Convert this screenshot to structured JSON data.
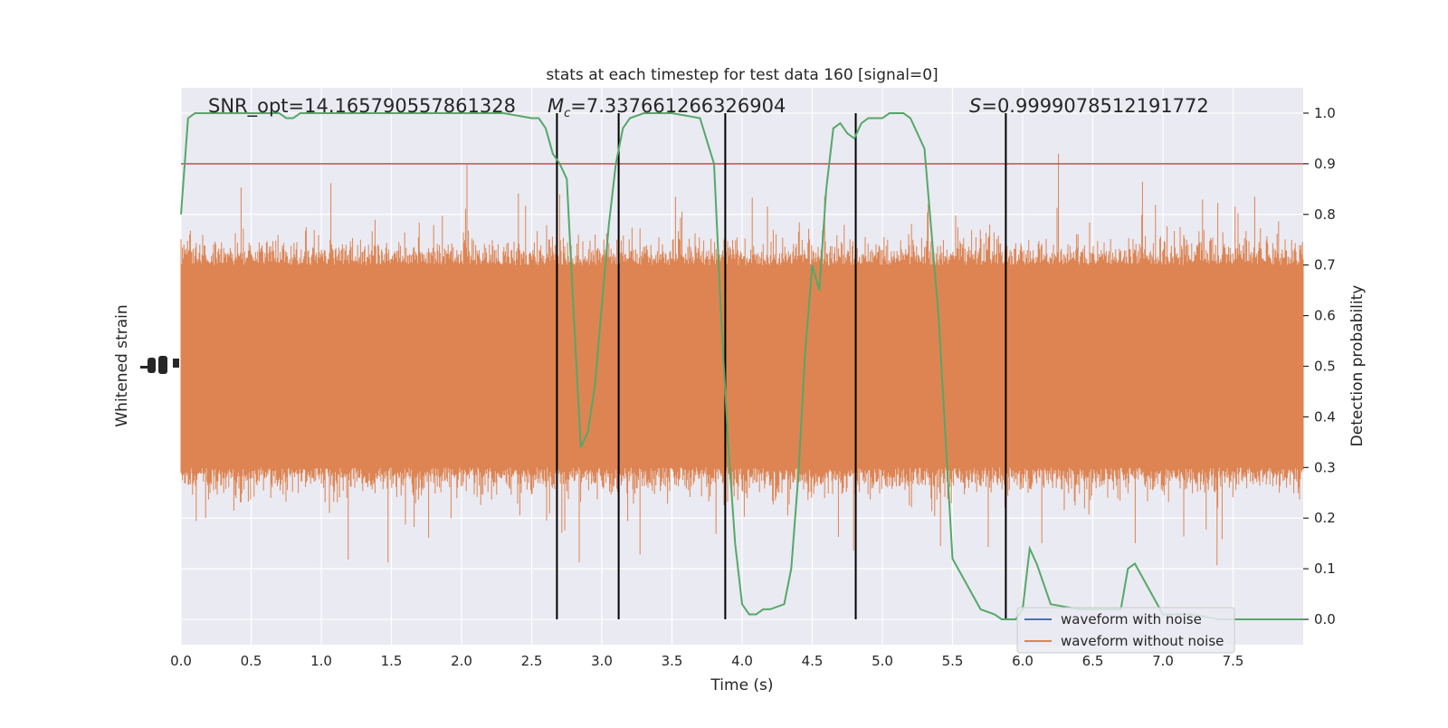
{
  "chart_data": {
    "type": "line",
    "title": "stats at each timestep for test data 160 [signal=0]",
    "xlabel": "Time (s)",
    "ylabel_left": "Whitened strain",
    "ylabel_right": "Detection probability",
    "xlim": [
      0,
      8
    ],
    "ylim_right": [
      -0.05,
      1.05
    ],
    "x_ticks": [
      "0.0",
      "0.5",
      "1.0",
      "1.5",
      "2.0",
      "2.5",
      "3.0",
      "3.5",
      "4.0",
      "4.5",
      "5.0",
      "5.5",
      "6.0",
      "6.5",
      "7.0",
      "7.5"
    ],
    "y_right_ticks": [
      "0.0",
      "0.1",
      "0.2",
      "0.3",
      "0.4",
      "0.5",
      "0.6",
      "0.7",
      "0.8",
      "0.9",
      "1.0"
    ],
    "grid": true,
    "legend_position": "lower-right",
    "annotations": {
      "snr": "SNR_opt=14.165790557861328",
      "chirp_mass_symbol": "M",
      "chirp_mass_subscript": "c",
      "chirp_mass_value": "=7.337661266326904",
      "score_symbol": "S",
      "score_value": "=0.9999078512191772"
    },
    "threshold": 0.9,
    "vertical_lines_x": [
      2.68,
      3.12,
      3.88,
      4.81,
      5.88
    ],
    "series": [
      {
        "name": "waveform with noise",
        "color": "#4c72b0",
        "values": []
      },
      {
        "name": "waveform without noise",
        "color": "#dd8452",
        "noise_band_center": 0.5,
        "noise_band_half_width": 0.2
      },
      {
        "color": "#55a868",
        "x": [
          0.0,
          0.05,
          0.1,
          0.2,
          0.3,
          0.5,
          0.7,
          0.75,
          0.8,
          0.85,
          0.9,
          1.0,
          1.5,
          2.0,
          2.3,
          2.5,
          2.55,
          2.6,
          2.65,
          2.7,
          2.75,
          2.8,
          2.85,
          2.9,
          2.95,
          3.0,
          3.05,
          3.1,
          3.15,
          3.2,
          3.3,
          3.5,
          3.7,
          3.8,
          3.85,
          3.9,
          3.95,
          4.0,
          4.05,
          4.1,
          4.15,
          4.2,
          4.3,
          4.35,
          4.4,
          4.45,
          4.5,
          4.55,
          4.6,
          4.65,
          4.7,
          4.75,
          4.8,
          4.85,
          4.9,
          5.0,
          5.05,
          5.1,
          5.15,
          5.2,
          5.3,
          5.4,
          5.5,
          5.7,
          5.8,
          5.85,
          5.9,
          5.95,
          6.0,
          6.05,
          6.1,
          6.2,
          6.4,
          6.5,
          6.55,
          6.6,
          6.65,
          6.7,
          6.75,
          6.8,
          7.0,
          7.2,
          7.4,
          7.45,
          7.5,
          7.55,
          7.6,
          7.65,
          7.7,
          7.8,
          8.0
        ],
        "values": [
          0.8,
          0.99,
          1.0,
          1.0,
          1.0,
          1.0,
          1.0,
          0.99,
          0.99,
          1.0,
          1.0,
          1.0,
          1.0,
          1.0,
          1.0,
          0.99,
          0.99,
          0.97,
          0.92,
          0.9,
          0.87,
          0.6,
          0.34,
          0.37,
          0.46,
          0.62,
          0.78,
          0.9,
          0.97,
          0.99,
          1.0,
          1.0,
          0.99,
          0.9,
          0.6,
          0.35,
          0.15,
          0.03,
          0.01,
          0.01,
          0.02,
          0.02,
          0.03,
          0.1,
          0.28,
          0.53,
          0.7,
          0.65,
          0.85,
          0.97,
          0.98,
          0.96,
          0.95,
          0.98,
          0.99,
          0.99,
          1.0,
          1.0,
          1.0,
          0.99,
          0.93,
          0.6,
          0.12,
          0.02,
          0.01,
          0.0,
          0.0,
          0.0,
          0.02,
          0.14,
          0.11,
          0.03,
          0.02,
          0.02,
          0.02,
          0.02,
          0.02,
          0.02,
          0.1,
          0.11,
          0.01,
          0.01,
          0.0,
          0.0,
          0.0,
          0.0,
          0.0,
          0.0,
          0.0,
          0.0,
          0.0
        ]
      }
    ]
  },
  "colors": {
    "plot_background": "#eaeaf2",
    "grid": "#ffffff",
    "threshold_line": "#c44e52",
    "vertical_markers": "#000000"
  }
}
